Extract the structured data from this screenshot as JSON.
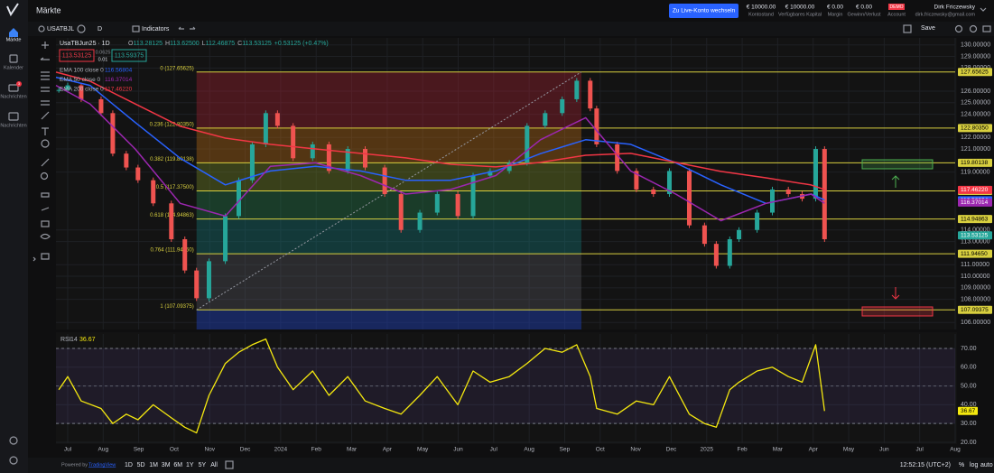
{
  "app": {
    "title": "Märkte",
    "nav": [
      "Märkte",
      "Kalender",
      "Nachrichten",
      "Nachrichten"
    ],
    "nav_badge": 3,
    "live_button": "Zu Live-Konto wechseln",
    "account": [
      {
        "value": "€ 10000.00",
        "label": "Kontostand"
      },
      {
        "value": "€ 10000.00",
        "label": "Verfügbares Kapital"
      },
      {
        "value": "€ 0.00",
        "label": "Margin"
      },
      {
        "value": "€ 0.00",
        "label": "Gewinn/Verlust"
      }
    ],
    "demo": "DEMO",
    "account_label": "Account",
    "user": {
      "name": "Dirk Friczewsky",
      "email": "dirk.friczewsky@gmail.com"
    },
    "toolbar": {
      "symbol": "USATBJL",
      "interval": "D",
      "indicators": "Indicators",
      "save": "Save"
    },
    "quote": {
      "sell": "113.53125",
      "spread": "0.0625",
      "qty": "0.01",
      "buy": "113.59375"
    },
    "ranges": [
      "1D",
      "5D",
      "1M",
      "3M",
      "6M",
      "1Y",
      "5Y",
      "All"
    ],
    "clock": "12:52:15 (UTC+2)",
    "scale_buttons": [
      "%",
      "log",
      "auto"
    ],
    "powered": "Powered by",
    "brand": "TradingView"
  },
  "chart_data": [
    {
      "type": "candlestick",
      "title": "UsaTBJun25 · 1D",
      "ohlc": [
        [
          "O",
          "113.28125"
        ],
        [
          "H",
          "113.62500"
        ],
        [
          "L",
          "112.46875"
        ],
        [
          "C",
          "113.53125"
        ]
      ],
      "change": "+0.53125 (+0.47%)",
      "x": [
        -0.25,
        0,
        0.38,
        0.94,
        1.27,
        1.65,
        1.98,
        2.41,
        2.92,
        3.3,
        3.63,
        3.98,
        4.44,
        4.82,
        5.2,
        5.58,
        5.91,
        6.35,
        6.9,
        7.36,
        7.89,
        8.38,
        8.93,
        9.39,
        9.92,
        10.41,
        10.99,
        11.42,
        11.9,
        12.44,
        12.94,
        13.45,
        13.93,
        14.34,
        14.72,
        14.9,
        15.48,
        16.02,
        16.5,
        16.95,
        17.51,
        17.94,
        18.27,
        18.65,
        18.91,
        19.42,
        19.85,
        20.3,
        20.69,
        21.07,
        21.32
      ],
      "values": [
        126.1,
        126.5,
        125.3,
        124.1,
        120.6,
        119.4,
        118.3,
        116.3,
        113.2,
        110.5,
        108.1,
        111.3,
        115.2,
        118.3,
        121.4,
        124.1,
        123,
        120.2,
        121.4,
        119.1,
        121,
        119.4,
        117.1,
        114,
        115.5,
        117.1,
        115.2,
        118.7,
        119.1,
        119.8,
        123,
        124.1,
        125.3,
        126.9,
        124.5,
        121.4,
        119.1,
        117.5,
        117.1,
        119.1,
        114.4,
        112.8,
        110.9,
        113.2,
        114,
        115.5,
        117.5,
        117.1,
        116.7,
        121,
        113.2
      ],
      "up_color": "#26a69a",
      "down_color": "#ef5350",
      "last": {
        "value": 113.53125,
        "value_label": "113.53125",
        "color": "#26a69a"
      },
      "xlim": [
        -0.33,
        25
      ],
      "ylim": [
        105.4,
        130.6
      ],
      "yticks": [
        {
          "value": 106,
          "label": "106.00000"
        },
        {
          "value": 108,
          "label": "108.00000"
        },
        {
          "value": 109,
          "label": "109.00000"
        },
        {
          "value": 110,
          "label": "110.00000"
        },
        {
          "value": 111,
          "label": "111.00000"
        },
        {
          "value": 113,
          "label": "113.00000"
        },
        {
          "value": 114,
          "label": "114.00000"
        },
        {
          "value": 119,
          "label": "119.00000"
        },
        {
          "value": 121,
          "label": "121.00000"
        },
        {
          "value": 122,
          "label": "122.00000"
        },
        {
          "value": 124,
          "label": "124.00000"
        },
        {
          "value": 125,
          "label": "125.00000"
        },
        {
          "value": 126,
          "label": "126.00000"
        },
        {
          "value": 128,
          "label": "128.00000"
        },
        {
          "value": 129,
          "label": "129.00000"
        },
        {
          "value": 130,
          "label": "130.00000"
        }
      ],
      "xticks": [
        0,
        1,
        2,
        3,
        4,
        5,
        6,
        7,
        8,
        9,
        10,
        11,
        12,
        13,
        14,
        15,
        16,
        17,
        18,
        19,
        20,
        21,
        22,
        23,
        24,
        25
      ],
      "ema": [
        {
          "name": "EMA 100 close 0",
          "color": "#2962ff",
          "last": {
            "value": 116.56804,
            "value_label": "116.56804"
          },
          "x": [
            -0.33,
            0.63,
            1.9,
            3.17,
            4.44,
            5.71,
            6.98,
            8.25,
            9.52,
            10.79,
            12.06,
            13.32,
            14.59,
            15.86,
            17.13,
            18.4,
            19.67,
            20.94,
            21.32
          ],
          "values": [
            127.2,
            126.5,
            123.3,
            120.2,
            117.9,
            119.1,
            119.5,
            119.1,
            118.3,
            118.3,
            119.1,
            120.6,
            121.8,
            121.4,
            119.8,
            117.9,
            116.3,
            117.1,
            116.6
          ]
        },
        {
          "name": "EMA 50 close 0",
          "color": "#9c27b0",
          "last": {
            "value": 116.37014,
            "value_label": "116.37014"
          },
          "x": [
            -0.33,
            0.63,
            1.9,
            3.17,
            4.44,
            5.71,
            6.98,
            8.25,
            9.52,
            10.79,
            12.06,
            13.32,
            14.59,
            15.86,
            17.13,
            18.4,
            19.67,
            20.94,
            21.32
          ],
          "values": [
            126.5,
            124.9,
            121,
            116.3,
            115.2,
            119.5,
            119.8,
            118.7,
            117.1,
            117.5,
            118.7,
            121.8,
            123.7,
            119.1,
            117.1,
            114.8,
            116.3,
            117.1,
            116.3
          ]
        },
        {
          "name": "EMA 200 close 0",
          "color": "#f23645",
          "last": {
            "value": 117.4622,
            "value_label": "117.46220"
          },
          "x": [
            -0.33,
            0.63,
            1.9,
            3.17,
            4.44,
            5.71,
            6.98,
            8.25,
            9.52,
            10.79,
            12.06,
            13.32,
            14.59,
            15.86,
            17.13,
            18.4,
            19.67,
            20.94,
            21.32
          ],
          "values": [
            127.64,
            126.86,
            124.9,
            122.96,
            121.94,
            121.4,
            121,
            120.62,
            120.23,
            119.68,
            119.45,
            119.84,
            120.46,
            120.62,
            119.84,
            119.06,
            118.51,
            117.89,
            117.5
          ]
        }
      ],
      "fib": {
        "x": [
          3.63,
          14.47
        ],
        "line_color": "#d8cf3f",
        "levels": [
          {
            "label": "0 (127.65625)",
            "value": 127.65625,
            "value_label": "127.65625",
            "zone_color": "rgba(178,34,52,0.35)"
          },
          {
            "label": "0.236 (122.80350)",
            "value": 122.8035,
            "value_label": "122.80350",
            "zone_color": "rgba(190,110,20,0.38)"
          },
          {
            "label": "0.382 (119.80138)",
            "value": 119.80138,
            "value_label": "119.80138",
            "zone_color": "rgba(120,140,40,0.38)"
          },
          {
            "label": "0.5 (117.37500)",
            "value": 117.375,
            "value_label": "117.37500",
            "zone_color": "rgba(40,130,80,0.38)"
          },
          {
            "label": "0.618 (114.94863)",
            "value": 114.94863,
            "value_label": "114.94863",
            "zone_color": "rgba(20,120,120,0.38)"
          },
          {
            "label": "0.764 (111.94650)",
            "value": 111.9465,
            "value_label": "111.94650",
            "zone_color": "rgba(100,100,110,0.3)"
          },
          {
            "label": "1 (107.09375)",
            "value": 107.09375,
            "value_label": "107.09375",
            "zone_color": "rgba(30,60,170,0.5)"
          }
        ]
      }
    },
    {
      "type": "line",
      "title": "RSI",
      "params": "14",
      "last": 36.67,
      "color": "#f5e90f",
      "x": [
        -0.25,
        0,
        0.38,
        0.94,
        1.27,
        1.65,
        1.98,
        2.41,
        2.92,
        3.3,
        3.63,
        3.98,
        4.44,
        4.82,
        5.2,
        5.58,
        5.91,
        6.35,
        6.9,
        7.36,
        7.89,
        8.38,
        8.93,
        9.39,
        9.92,
        10.41,
        10.99,
        11.42,
        11.9,
        12.44,
        12.94,
        13.45,
        13.93,
        14.34,
        14.72,
        14.9,
        15.48,
        16.02,
        16.5,
        16.95,
        17.51,
        17.94,
        18.27,
        18.65,
        18.91,
        19.42,
        19.85,
        20.3,
        20.69,
        21.07,
        21.32
      ],
      "values": [
        48,
        55,
        42,
        38,
        30,
        35,
        32,
        40,
        33,
        28,
        25,
        45,
        62,
        68,
        72,
        75,
        60,
        48,
        58,
        45,
        55,
        42,
        38,
        35,
        45,
        55,
        40,
        58,
        52,
        55,
        62,
        70,
        68,
        72,
        55,
        38,
        35,
        42,
        40,
        55,
        35,
        30,
        28,
        48,
        52,
        58,
        60,
        55,
        52,
        72,
        36.67
      ],
      "bands": [
        30,
        70
      ],
      "midline": 50,
      "xlim": [
        -0.33,
        25
      ],
      "ylim": [
        19.5,
        77.7
      ],
      "yticks": [
        {
          "value": 20,
          "label": "20.00"
        },
        {
          "value": 30,
          "label": "30.00"
        },
        {
          "value": 40,
          "label": "40.00"
        },
        {
          "value": 50,
          "label": "50.00"
        },
        {
          "value": 60,
          "label": "60.00"
        },
        {
          "value": 70,
          "label": "70.00"
        }
      ],
      "xticks": [
        {
          "value": 0,
          "label": "Jul"
        },
        {
          "value": 1,
          "label": "Aug"
        },
        {
          "value": 2,
          "label": "Sep"
        },
        {
          "value": 3,
          "label": "Oct"
        },
        {
          "value": 4,
          "label": "Nov"
        },
        {
          "value": 5,
          "label": "Dec"
        },
        {
          "value": 6,
          "label": "2024"
        },
        {
          "value": 7,
          "label": "Feb"
        },
        {
          "value": 8,
          "label": "Mar"
        },
        {
          "value": 9,
          "label": "Apr"
        },
        {
          "value": 10,
          "label": "May"
        },
        {
          "value": 11,
          "label": "Jun"
        },
        {
          "value": 12,
          "label": "Jul"
        },
        {
          "value": 13,
          "label": "Aug"
        },
        {
          "value": 14,
          "label": "Sep"
        },
        {
          "value": 15,
          "label": "Oct"
        },
        {
          "value": 16,
          "label": "Nov"
        },
        {
          "value": 17,
          "label": "Dec"
        },
        {
          "value": 18,
          "label": "2025"
        },
        {
          "value": 19,
          "label": "Feb"
        },
        {
          "value": 20,
          "label": "Mar"
        },
        {
          "value": 21,
          "label": "Apr"
        },
        {
          "value": 22,
          "label": "May"
        },
        {
          "value": 23,
          "label": "Jun"
        },
        {
          "value": 24,
          "label": "Jul"
        },
        {
          "value": 25,
          "label": "Aug"
        }
      ]
    }
  ]
}
